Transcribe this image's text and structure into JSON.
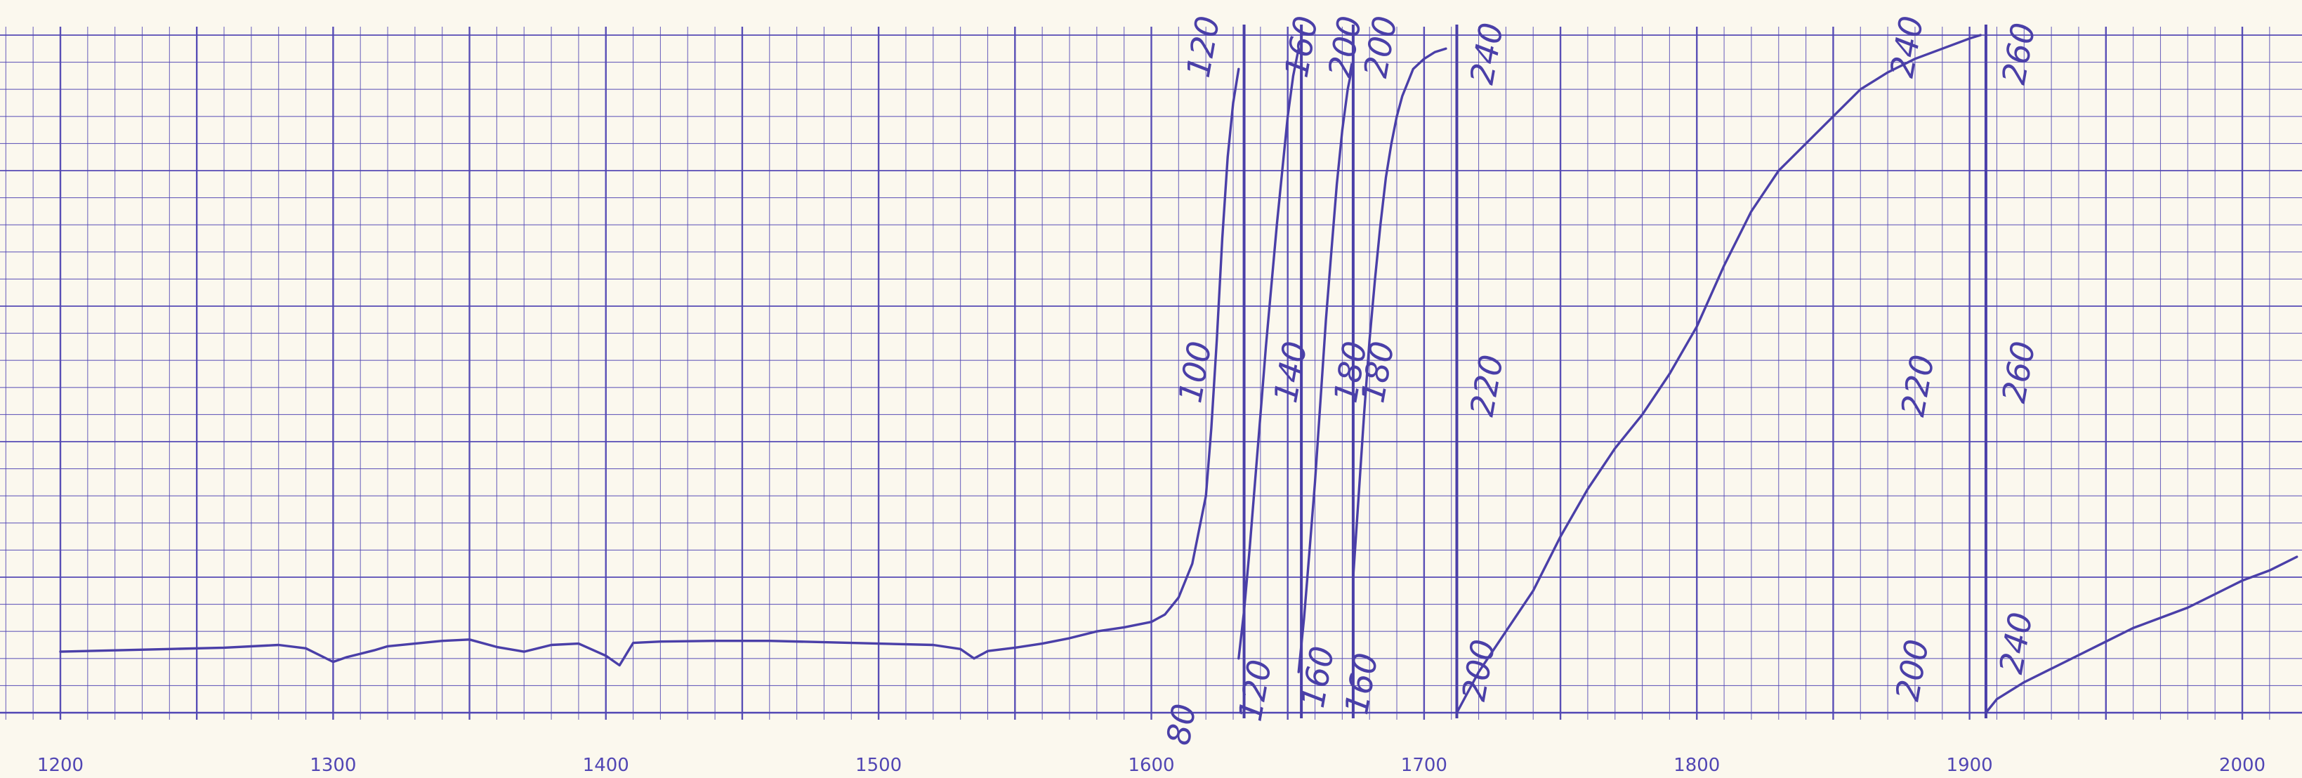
{
  "chart_data": {
    "type": "line",
    "title": "",
    "xlabel": "",
    "ylabel": "",
    "xlim": [
      1200,
      2000
    ],
    "ylim": [
      0,
      100
    ],
    "grid": true,
    "x_tick_labels": [
      "1200",
      "1300",
      "1400",
      "1500",
      "1600",
      "1700",
      "1800",
      "1900",
      "2000"
    ],
    "line_color": "#4a3fa8",
    "grid_color": "#5146b4",
    "paper_color": "#fbf8ee",
    "series": [
      {
        "x": [
          1200,
          1220,
          1240,
          1260,
          1280,
          1290,
          1300,
          1305,
          1315,
          1320,
          1330,
          1340,
          1350,
          1360,
          1370,
          1380,
          1390,
          1400,
          1405,
          1410,
          1420,
          1440,
          1460,
          1480,
          1500,
          1520,
          1530,
          1535,
          1540,
          1550,
          1560,
          1570,
          1580,
          1590,
          1600,
          1605,
          1610,
          1615,
          1620,
          1622,
          1624,
          1626,
          1628,
          1630,
          1632
        ],
        "y": [
          9,
          9.2,
          9.4,
          9.6,
          10,
          9.5,
          7.5,
          8.2,
          9.2,
          9.8,
          10.2,
          10.6,
          10.8,
          9.7,
          9,
          10,
          10.2,
          8.4,
          7,
          10.3,
          10.5,
          10.6,
          10.6,
          10.4,
          10.2,
          10,
          9.4,
          8,
          9.1,
          9.6,
          10.2,
          11,
          12,
          12.6,
          13.4,
          14.5,
          17,
          22,
          32,
          42,
          55,
          70,
          82,
          90,
          95
        ]
      },
      {
        "x": [
          1632,
          1634,
          1636,
          1638,
          1640,
          1642,
          1644,
          1646,
          1648,
          1650,
          1652,
          1654
        ],
        "y": [
          8,
          15,
          24,
          34,
          44,
          54,
          63,
          72,
          80,
          88,
          94,
          98
        ]
      },
      {
        "x": [
          1654,
          1656,
          1658,
          1660,
          1662,
          1664,
          1666,
          1668,
          1670,
          1672,
          1674
        ],
        "y": [
          6,
          14,
          24,
          34,
          46,
          58,
          68,
          78,
          86,
          92,
          96
        ]
      },
      {
        "x": [
          1674,
          1676,
          1678,
          1680,
          1682,
          1684,
          1686,
          1688,
          1690,
          1692,
          1694,
          1696,
          1700,
          1704,
          1708
        ],
        "y": [
          20,
          32,
          44,
          55,
          64,
          72,
          79,
          84,
          88,
          91,
          93,
          95,
          96.5,
          97.5,
          98
        ]
      },
      {
        "x": [
          1712,
          1720,
          1730,
          1740,
          1750,
          1760,
          1770,
          1780,
          1790,
          1800,
          1810,
          1820,
          1830,
          1840,
          1850,
          1860,
          1870,
          1880,
          1890,
          1900,
          1904
        ],
        "y": [
          0,
          6,
          12,
          18,
          26,
          33,
          39,
          44,
          50,
          57,
          66,
          74,
          80,
          84,
          88,
          92,
          94.5,
          96.5,
          98,
          99.5,
          100
        ]
      },
      {
        "x": [
          1906,
          1910,
          1920,
          1930,
          1940,
          1950,
          1960,
          1970,
          1980,
          1990,
          2000,
          2010,
          2020
        ],
        "y": [
          0,
          2,
          4.5,
          6.5,
          8.5,
          10.5,
          12.5,
          14,
          15.5,
          17.5,
          19.5,
          21,
          23
        ]
      }
    ],
    "annotations": [
      {
        "text": "120",
        "x": 1623,
        "y": 98
      },
      {
        "text": "160",
        "x": 1659,
        "y": 98
      },
      {
        "text": "200",
        "x": 1675,
        "y": 98
      },
      {
        "text": "200",
        "x": 1688,
        "y": 98
      },
      {
        "text": "240",
        "x": 1727,
        "y": 97
      },
      {
        "text": "240",
        "x": 1881,
        "y": 98
      },
      {
        "text": "260",
        "x": 1922,
        "y": 97
      },
      {
        "text": "100",
        "x": 1620,
        "y": 50
      },
      {
        "text": "140",
        "x": 1655,
        "y": 50
      },
      {
        "text": "180",
        "x": 1677,
        "y": 50
      },
      {
        "text": "180",
        "x": 1687,
        "y": 50
      },
      {
        "text": "220",
        "x": 1727,
        "y": 48
      },
      {
        "text": "220",
        "x": 1885,
        "y": 48
      },
      {
        "text": "260",
        "x": 1922,
        "y": 50
      },
      {
        "text": "80",
        "x": 1615,
        "y": -2
      },
      {
        "text": "120",
        "x": 1642,
        "y": 3
      },
      {
        "text": "160",
        "x": 1665,
        "y": 5
      },
      {
        "text": "160",
        "x": 1681,
        "y": 4
      },
      {
        "text": "200",
        "x": 1724,
        "y": 6
      },
      {
        "text": "200",
        "x": 1883,
        "y": 6
      },
      {
        "text": "240",
        "x": 1921,
        "y": 10
      }
    ],
    "pen_lines": [
      1634,
      1655,
      1674,
      1712,
      1906
    ]
  }
}
